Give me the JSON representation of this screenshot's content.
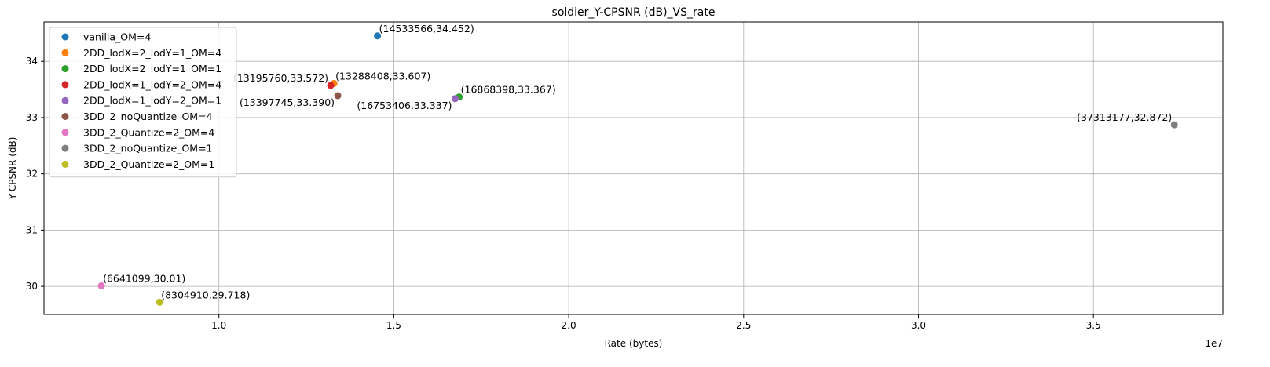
{
  "chart_data": {
    "type": "scatter",
    "title": "soldier_Y-CPSNR (dB)_VS_rate",
    "xlabel": "Rate (bytes)",
    "ylabel": "Y-CPSNR (dB)",
    "x_offset_label": "1e7",
    "xlim": [
      5000000,
      38700000
    ],
    "ylim": [
      29.5,
      34.7
    ],
    "x_ticks": [
      10000000,
      15000000,
      20000000,
      25000000,
      30000000,
      35000000
    ],
    "x_tick_labels": [
      "1.0",
      "1.5",
      "2.0",
      "2.5",
      "3.0",
      "3.5"
    ],
    "y_ticks": [
      30,
      31,
      32,
      33,
      34
    ],
    "y_tick_labels": [
      "30",
      "31",
      "32",
      "33",
      "34"
    ],
    "grid": true,
    "legend_position": "upper-left",
    "series": [
      {
        "name": "vanilla_OM=4",
        "color": "#1f77b4",
        "x": 14533566,
        "y": 34.452,
        "label": "(14533566,34.452)",
        "label_pos": "above-right"
      },
      {
        "name": "2DD_lodX=2_lodY=1_OM=4",
        "color": "#ff7f0e",
        "x": 13288408,
        "y": 33.607,
        "label": "(13288408,33.607)",
        "label_pos": "above-right"
      },
      {
        "name": "2DD_lodX=2_lodY=1_OM=1",
        "color": "#2ca02c",
        "x": 16868398,
        "y": 33.367,
        "label": "(16868398,33.367)",
        "label_pos": "above-right"
      },
      {
        "name": "2DD_lodX=1_lodY=2_OM=4",
        "color": "#d62728",
        "x": 13195760,
        "y": 33.572,
        "label": "(13195760,33.572)",
        "label_pos": "above-left"
      },
      {
        "name": "2DD_lodX=1_lodY=2_OM=1",
        "color": "#9467bd",
        "x": 16753406,
        "y": 33.337,
        "label": "(16753406,33.337)",
        "label_pos": "below-left"
      },
      {
        "name": "3DD_2_noQuantize_OM=4",
        "color": "#8c564b",
        "x": 13397745,
        "y": 33.39,
        "label": "(13397745,33.390)",
        "label_pos": "below-left"
      },
      {
        "name": "3DD_2_Quantize=2_OM=4",
        "color": "#e377c2",
        "x": 6641099,
        "y": 30.01,
        "label": "(6641099,30.01)",
        "label_pos": "above-right"
      },
      {
        "name": "3DD_2_noQuantize_OM=1",
        "color": "#7f7f7f",
        "x": 37313177,
        "y": 32.872,
        "label": "(37313177,32.872)",
        "label_pos": "above-left"
      },
      {
        "name": "3DD_2_Quantize=2_OM=1",
        "color": "#bcbd22",
        "x": 8304910,
        "y": 29.718,
        "label": "(8304910,29.718)",
        "label_pos": "above-right"
      }
    ]
  }
}
